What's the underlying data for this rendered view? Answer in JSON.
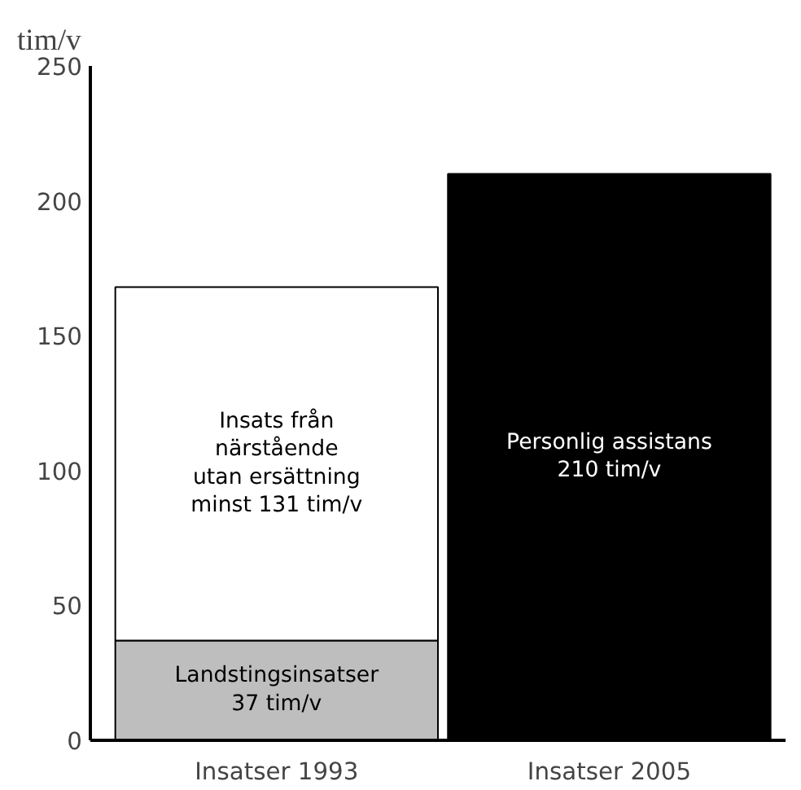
{
  "chart_data": {
    "type": "bar",
    "stacked": true,
    "ylabel": "tim/v",
    "categories": [
      "Insatser 1993",
      "Insatser 2005"
    ],
    "series": [
      {
        "name": "Landstingsinsatser",
        "color": "#bebebe",
        "values": [
          37,
          null
        ],
        "value_labels": [
          "37 tim/v",
          null
        ]
      },
      {
        "name": "Insats från\nnärstående\nutan ersättning",
        "color": "#ffffff",
        "values": [
          131,
          null
        ],
        "value_labels": [
          "minst 131 tim/v",
          null
        ]
      },
      {
        "name": "Personlig assistans",
        "color": "#000000",
        "values": [
          null,
          210
        ],
        "value_labels": [
          null,
          "210 tim/v"
        ]
      }
    ],
    "ylim": [
      0,
      250
    ],
    "yticks": [
      0,
      50,
      100,
      150,
      200,
      250
    ],
    "grid": false
  }
}
